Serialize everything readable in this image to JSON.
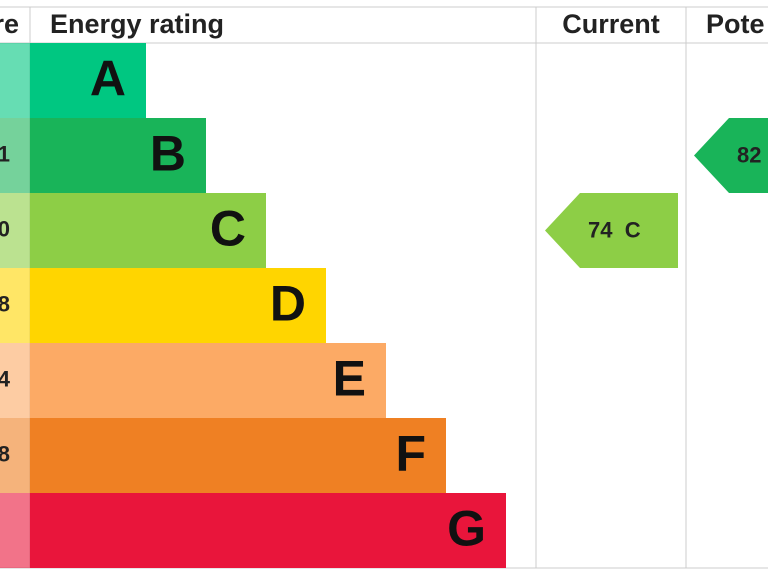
{
  "header": {
    "score": "re",
    "rating": "Energy rating",
    "current": "Current",
    "potential": "Pote"
  },
  "bands": [
    {
      "letter": "A",
      "color": "#00c781"
    },
    {
      "letter": "B",
      "score": "1",
      "color": "#19b459"
    },
    {
      "letter": "C",
      "score": "0",
      "color": "#8dce46"
    },
    {
      "letter": "D",
      "score": "8",
      "color": "#ffd500"
    },
    {
      "letter": "E",
      "score": "4",
      "color": "#fcaa65"
    },
    {
      "letter": "F",
      "score": "8",
      "color": "#ef8023"
    },
    {
      "letter": "G",
      "color": "#e9153b"
    }
  ],
  "current": {
    "label": "74  C",
    "band": 2
  },
  "potential": {
    "label": "82",
    "band": 1
  }
}
